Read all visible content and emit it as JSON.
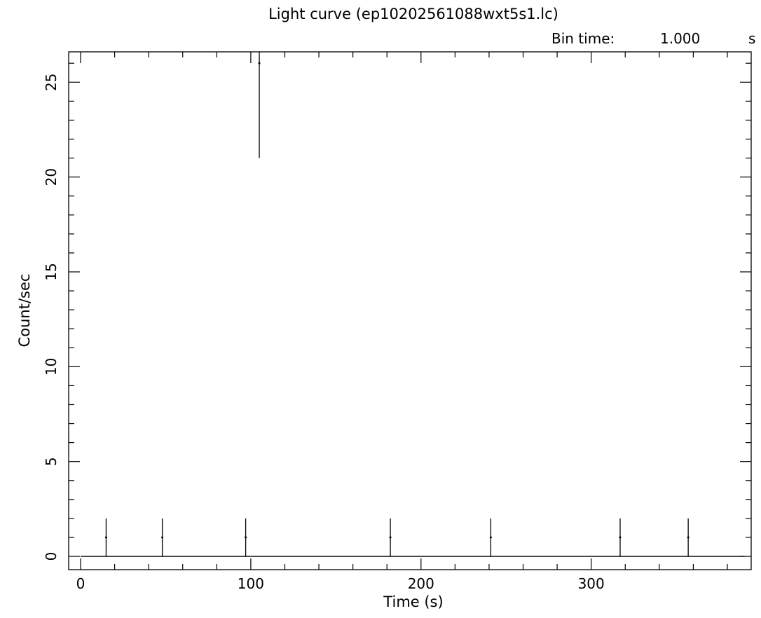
{
  "chart_data": {
    "type": "scatter",
    "title": "Light curve (ep10202561088wxt5s1.lc)",
    "bin_time_label": "Bin time:",
    "bin_time_value": "1.000",
    "bin_time_unit": "s",
    "xlabel": "Time (s)",
    "ylabel": "Count/sec",
    "xlim": [
      -7,
      394
    ],
    "ylim": [
      -0.7,
      26.6
    ],
    "x_ticks": [
      0,
      100,
      200,
      300
    ],
    "y_ticks": [
      0,
      5,
      10,
      15,
      20,
      25
    ],
    "x_tick_labels": [
      "0",
      "100",
      "200",
      "300"
    ],
    "y_tick_labels": [
      "0",
      "5",
      "10",
      "15",
      "20",
      "25"
    ],
    "x_minor_step": 20,
    "y_minor_step": 1,
    "grid": false,
    "zero_line": {
      "x_start": 0,
      "x_end": 390,
      "y": 0
    },
    "points": [
      {
        "x": 15,
        "y": 1,
        "ylo": 0,
        "yhi": 2
      },
      {
        "x": 48,
        "y": 1,
        "ylo": 0,
        "yhi": 2
      },
      {
        "x": 97,
        "y": 1,
        "ylo": 0,
        "yhi": 2
      },
      {
        "x": 105,
        "y": 26,
        "ylo": 21,
        "yhi": 31
      },
      {
        "x": 182,
        "y": 1,
        "ylo": 0,
        "yhi": 2
      },
      {
        "x": 241,
        "y": 1,
        "ylo": 0,
        "yhi": 2
      },
      {
        "x": 317,
        "y": 1,
        "ylo": 0,
        "yhi": 2
      },
      {
        "x": 357,
        "y": 1,
        "ylo": 0,
        "yhi": 2
      }
    ]
  }
}
